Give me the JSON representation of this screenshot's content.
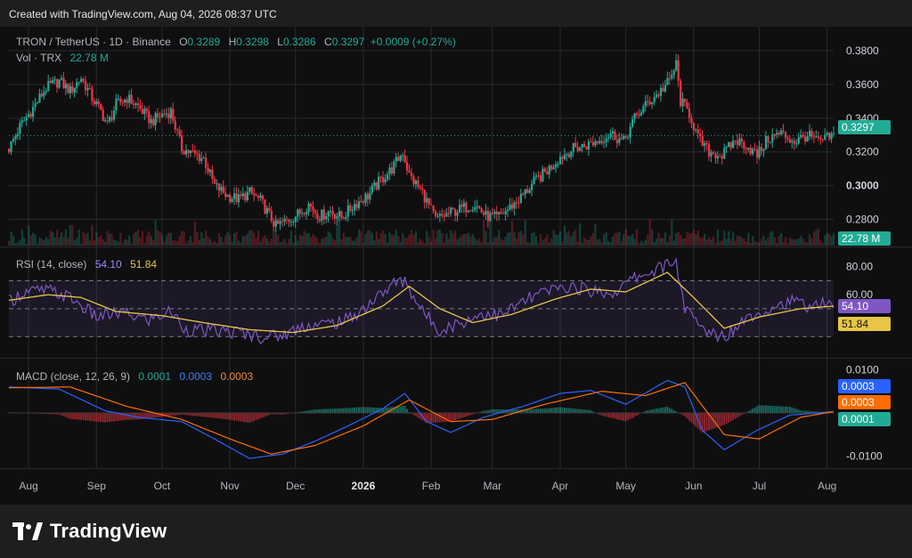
{
  "credit": "Created with TradingView.com, Aug 04, 2026 08:37 UTC",
  "brand": "TradingView",
  "colors": {
    "up": "#22ab94",
    "down": "#f23645",
    "rsi": "#7e57c2",
    "rsi_ma": "#e8c547",
    "macd": "#2962ff",
    "signal": "#ff6d00",
    "panel": "#0f0f10",
    "grid": "#2a2a2e"
  },
  "header": {
    "symbol": "TRON / TetherUS · 1D · Binance",
    "o_label": "O",
    "o": "0.3289",
    "h_label": "H",
    "h": "0.3298",
    "l_label": "L",
    "l": "0.3286",
    "c_label": "C",
    "c": "0.3297",
    "change": "+0.0009 (+0.27%)",
    "vol_label": "Vol · TRX",
    "vol": "22.78 M"
  },
  "rsi_header": {
    "label": "RSI (14, close)",
    "rsi": "54.10",
    "ma": "51.84"
  },
  "macd_header": {
    "label": "MACD (close, 12, 26, 9)",
    "hist": "0.0001",
    "macd": "0.0003",
    "signal": "0.0003"
  },
  "tags": {
    "price": "0.3297",
    "volume": "22.78 M",
    "rsi": "54.10",
    "rsi_ma": "51.84",
    "macd": "0.0003",
    "signal": "0.0003",
    "hist": "0.0001"
  },
  "chart_data": {
    "type": "candlestick",
    "price_axis": {
      "min": 0.265,
      "max": 0.39,
      "ticks": [
        "0.3800",
        "0.3600",
        "0.3400",
        "0.3200",
        "0.3000",
        "0.2800"
      ]
    },
    "rsi_axis": {
      "min": 20,
      "max": 90,
      "ticks": [
        "80.00",
        "60.00"
      ],
      "bands": [
        30,
        50,
        70
      ]
    },
    "macd_axis": {
      "min": -0.0115,
      "max": 0.0115,
      "ticks": [
        "0.0100",
        "-0.0100"
      ]
    },
    "x_axis": {
      "start": "2025-07-23",
      "end": "2026-08-04",
      "labels": [
        "Aug",
        "Sep",
        "Oct",
        "Nov",
        "Dec",
        "2026",
        "Feb",
        "Mar",
        "Apr",
        "May",
        "Jun",
        "Jul",
        "Aug"
      ],
      "label_dates": [
        "2025-08-01",
        "2025-09-01",
        "2025-10-01",
        "2025-11-01",
        "2025-12-01",
        "2026-01-01",
        "2026-02-01",
        "2026-03-01",
        "2026-04-01",
        "2026-05-01",
        "2026-06-01",
        "2026-07-01",
        "2026-08-01"
      ]
    },
    "close_path": [
      [
        "2025-07-23",
        0.322
      ],
      [
        "2025-07-28",
        0.335
      ],
      [
        "2025-08-03",
        0.346
      ],
      [
        "2025-08-09",
        0.358
      ],
      [
        "2025-08-15",
        0.362
      ],
      [
        "2025-08-20",
        0.356
      ],
      [
        "2025-08-25",
        0.364
      ],
      [
        "2025-08-30",
        0.352
      ],
      [
        "2025-09-03",
        0.344
      ],
      [
        "2025-09-06",
        0.336
      ],
      [
        "2025-09-10",
        0.348
      ],
      [
        "2025-09-15",
        0.352
      ],
      [
        "2025-09-20",
        0.347
      ],
      [
        "2025-09-26",
        0.338
      ],
      [
        "2025-10-01",
        0.342
      ],
      [
        "2025-10-05",
        0.344
      ],
      [
        "2025-10-10",
        0.322
      ],
      [
        "2025-10-15",
        0.319
      ],
      [
        "2025-10-20",
        0.316
      ],
      [
        "2025-10-25",
        0.3
      ],
      [
        "2025-10-31",
        0.294
      ],
      [
        "2025-11-05",
        0.292
      ],
      [
        "2025-11-10",
        0.296
      ],
      [
        "2025-11-15",
        0.291
      ],
      [
        "2025-11-22",
        0.276
      ],
      [
        "2025-11-28",
        0.28
      ],
      [
        "2025-12-03",
        0.284
      ],
      [
        "2025-12-07",
        0.289
      ],
      [
        "2025-12-12",
        0.282
      ],
      [
        "2025-12-17",
        0.285
      ],
      [
        "2025-12-22",
        0.281
      ],
      [
        "2025-12-28",
        0.289
      ],
      [
        "2026-01-03",
        0.294
      ],
      [
        "2026-01-08",
        0.302
      ],
      [
        "2026-01-14",
        0.31
      ],
      [
        "2026-01-19",
        0.32
      ],
      [
        "2026-01-22",
        0.306
      ],
      [
        "2026-01-28",
        0.296
      ],
      [
        "2026-02-03",
        0.28
      ],
      [
        "2026-02-10",
        0.284
      ],
      [
        "2026-02-16",
        0.287
      ],
      [
        "2026-02-21",
        0.289
      ],
      [
        "2026-02-26",
        0.282
      ],
      [
        "2026-03-03",
        0.281
      ],
      [
        "2026-03-08",
        0.286
      ],
      [
        "2026-03-14",
        0.293
      ],
      [
        "2026-03-20",
        0.302
      ],
      [
        "2026-03-26",
        0.309
      ],
      [
        "2026-04-01",
        0.317
      ],
      [
        "2026-04-07",
        0.322
      ],
      [
        "2026-04-13",
        0.324
      ],
      [
        "2026-04-19",
        0.327
      ],
      [
        "2026-04-24",
        0.331
      ],
      [
        "2026-04-30",
        0.326
      ],
      [
        "2026-05-05",
        0.34
      ],
      [
        "2026-05-11",
        0.349
      ],
      [
        "2026-05-16",
        0.355
      ],
      [
        "2026-05-21",
        0.362
      ],
      [
        "2026-05-24",
        0.372
      ],
      [
        "2026-05-26",
        0.35
      ],
      [
        "2026-05-30",
        0.343
      ],
      [
        "2026-06-03",
        0.328
      ],
      [
        "2026-06-08",
        0.32
      ],
      [
        "2026-06-14",
        0.318
      ],
      [
        "2026-06-20",
        0.327
      ],
      [
        "2026-06-25",
        0.324
      ],
      [
        "2026-06-30",
        0.318
      ],
      [
        "2026-07-05",
        0.328
      ],
      [
        "2026-07-11",
        0.331
      ],
      [
        "2026-07-17",
        0.326
      ],
      [
        "2026-07-23",
        0.33
      ],
      [
        "2026-07-28",
        0.326
      ],
      [
        "2026-08-04",
        0.3297
      ]
    ],
    "rsi_path": [
      [
        "2025-07-23",
        55
      ],
      [
        "2025-07-30",
        62
      ],
      [
        "2025-08-10",
        63
      ],
      [
        "2025-08-20",
        58
      ],
      [
        "2025-09-01",
        44
      ],
      [
        "2025-09-12",
        47
      ],
      [
        "2025-09-25",
        42
      ],
      [
        "2025-10-05",
        48
      ],
      [
        "2025-10-12",
        35
      ],
      [
        "2025-10-25",
        34
      ],
      [
        "2025-11-05",
        33
      ],
      [
        "2025-11-15",
        30
      ],
      [
        "2025-11-25",
        31
      ],
      [
        "2025-12-05",
        38
      ],
      [
        "2025-12-15",
        39
      ],
      [
        "2025-12-25",
        42
      ],
      [
        "2026-01-05",
        55
      ],
      [
        "2026-01-15",
        68
      ],
      [
        "2026-01-20",
        70
      ],
      [
        "2026-01-28",
        48
      ],
      [
        "2026-02-05",
        35
      ],
      [
        "2026-02-15",
        40
      ],
      [
        "2026-02-25",
        47
      ],
      [
        "2026-03-05",
        45
      ],
      [
        "2026-03-15",
        55
      ],
      [
        "2026-03-25",
        62
      ],
      [
        "2026-04-05",
        66
      ],
      [
        "2026-04-15",
        63
      ],
      [
        "2026-04-25",
        61
      ],
      [
        "2026-05-05",
        72
      ],
      [
        "2026-05-15",
        78
      ],
      [
        "2026-05-24",
        84
      ],
      [
        "2026-05-28",
        50
      ],
      [
        "2026-06-05",
        35
      ],
      [
        "2026-06-15",
        30
      ],
      [
        "2026-06-25",
        44
      ],
      [
        "2026-07-05",
        50
      ],
      [
        "2026-07-15",
        55
      ],
      [
        "2026-07-25",
        52
      ],
      [
        "2026-08-04",
        54.1
      ]
    ],
    "rsi_ma_path": [
      [
        "2025-07-23",
        56
      ],
      [
        "2025-08-10",
        60
      ],
      [
        "2025-08-25",
        58
      ],
      [
        "2025-09-10",
        48
      ],
      [
        "2025-10-01",
        45
      ],
      [
        "2025-10-20",
        40
      ],
      [
        "2025-11-10",
        35
      ],
      [
        "2025-11-30",
        33
      ],
      [
        "2025-12-20",
        38
      ],
      [
        "2026-01-10",
        52
      ],
      [
        "2026-01-22",
        66
      ],
      [
        "2026-02-05",
        50
      ],
      [
        "2026-02-20",
        40
      ],
      [
        "2026-03-10",
        46
      ],
      [
        "2026-03-30",
        57
      ],
      [
        "2026-04-15",
        64
      ],
      [
        "2026-05-01",
        62
      ],
      [
        "2026-05-20",
        76
      ],
      [
        "2026-06-01",
        58
      ],
      [
        "2026-06-15",
        36
      ],
      [
        "2026-07-01",
        44
      ],
      [
        "2026-07-20",
        50
      ],
      [
        "2026-08-04",
        51.84
      ]
    ],
    "macd_path": [
      [
        "2025-07-23",
        0.006
      ],
      [
        "2025-08-15",
        0.0055
      ],
      [
        "2025-09-05",
        0.0005
      ],
      [
        "2025-09-20",
        -0.001
      ],
      [
        "2025-10-10",
        -0.002
      ],
      [
        "2025-10-25",
        -0.006
      ],
      [
        "2025-11-10",
        -0.0105
      ],
      [
        "2025-11-25",
        -0.0095
      ],
      [
        "2025-12-10",
        -0.0065
      ],
      [
        "2025-12-25",
        -0.003
      ],
      [
        "2026-01-10",
        0.001
      ],
      [
        "2026-01-20",
        0.0045
      ],
      [
        "2026-01-30",
        -0.002
      ],
      [
        "2026-02-10",
        -0.0045
      ],
      [
        "2026-02-25",
        -0.001
      ],
      [
        "2026-03-15",
        0.0015
      ],
      [
        "2026-04-01",
        0.0045
      ],
      [
        "2026-04-15",
        0.0052
      ],
      [
        "2026-05-01",
        0.002
      ],
      [
        "2026-05-20",
        0.0075
      ],
      [
        "2026-05-28",
        0.006
      ],
      [
        "2026-06-05",
        -0.004
      ],
      [
        "2026-06-15",
        -0.0085
      ],
      [
        "2026-06-30",
        -0.004
      ],
      [
        "2026-07-15",
        -0.0005
      ],
      [
        "2026-08-04",
        0.0003
      ]
    ],
    "signal_path": [
      [
        "2025-07-23",
        0.0058
      ],
      [
        "2025-08-20",
        0.006
      ],
      [
        "2025-09-15",
        0.0015
      ],
      [
        "2025-10-10",
        -0.0015
      ],
      [
        "2025-11-01",
        -0.006
      ],
      [
        "2025-11-20",
        -0.0095
      ],
      [
        "2025-12-10",
        -0.0075
      ],
      [
        "2026-01-01",
        -0.003
      ],
      [
        "2026-01-22",
        0.003
      ],
      [
        "2026-02-10",
        -0.002
      ],
      [
        "2026-03-01",
        -0.0015
      ],
      [
        "2026-03-25",
        0.002
      ],
      [
        "2026-04-20",
        0.005
      ],
      [
        "2026-05-10",
        0.004
      ],
      [
        "2026-05-28",
        0.007
      ],
      [
        "2026-06-15",
        -0.005
      ],
      [
        "2026-07-01",
        -0.006
      ],
      [
        "2026-07-20",
        -0.001
      ],
      [
        "2026-08-04",
        0.0003
      ]
    ]
  }
}
